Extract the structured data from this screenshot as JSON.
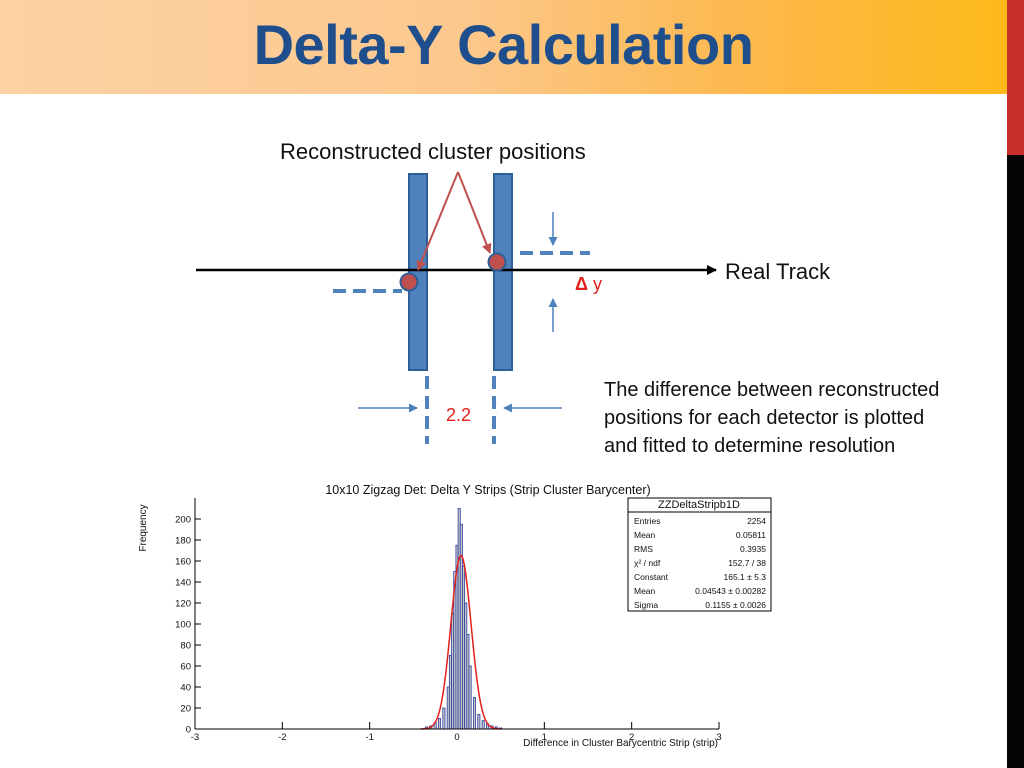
{
  "slide": {
    "title": "Delta-Y Calculation",
    "colors": {
      "title": "#1f4e8c",
      "detector": "#4f81bd",
      "cluster_point": "#c0504d",
      "accent_red": "#c9302c"
    }
  },
  "diagram": {
    "cluster_label": "Reconstructed cluster positions",
    "track_label": "Real Track",
    "delta_symbol": "Δ",
    "delta_var": "y",
    "spacing_label": "2.2"
  },
  "description": [
    "The difference between reconstructed",
    "positions for each detector is plotted",
    "and fitted to determine resolution"
  ],
  "chart_data": {
    "type": "bar",
    "title": "10x10 Zigzag Det: Delta Y Strips (Strip Cluster Barycenter)",
    "xlabel": "Difference in Cluster Barycentric Strip (strip)",
    "ylabel": "Frequency",
    "xlim": [
      -3,
      3
    ],
    "ylim": [
      0,
      220
    ],
    "x_ticks": [
      "-3",
      "-2",
      "-1",
      "0",
      "1",
      "2",
      "3"
    ],
    "y_ticks": [
      "0",
      "20",
      "40",
      "60",
      "80",
      "100",
      "120",
      "140",
      "160",
      "180",
      "200"
    ],
    "grid": false,
    "fill_color": "#c8c8c8",
    "outline_color": "#2b3c9e",
    "fit_color": "#e0201c",
    "histogram": {
      "name": "ZZDeltaStripb1D",
      "bin_centers": [
        -0.35,
        -0.3,
        -0.25,
        -0.2,
        -0.15,
        -0.1,
        -0.075,
        -0.05,
        -0.025,
        0.0,
        0.025,
        0.05,
        0.075,
        0.1,
        0.125,
        0.15,
        0.2,
        0.25,
        0.3,
        0.35,
        0.4,
        0.45,
        0.5
      ],
      "counts": [
        2,
        3,
        6,
        10,
        20,
        40,
        70,
        110,
        150,
        175,
        210,
        195,
        155,
        120,
        90,
        60,
        30,
        14,
        8,
        5,
        3,
        2,
        1
      ]
    },
    "fit": {
      "type": "gaussian",
      "constant": 165.1,
      "mean": 0.04543,
      "sigma": 0.1155
    },
    "stats_box": {
      "title": "ZZDeltaStripb1D",
      "rows": [
        {
          "label": "Entries",
          "value": "2254"
        },
        {
          "label": "Mean",
          "value": "0.05811"
        },
        {
          "label": "RMS",
          "value": "0.3935"
        },
        {
          "label": "χ² / ndf",
          "value": "152.7 / 38"
        },
        {
          "label": "Constant",
          "value": "165.1 ± 5.3"
        },
        {
          "label": "Mean",
          "value": "0.04543 ± 0.00282"
        },
        {
          "label": "Sigma",
          "value": "0.1155 ± 0.0026"
        }
      ]
    }
  }
}
